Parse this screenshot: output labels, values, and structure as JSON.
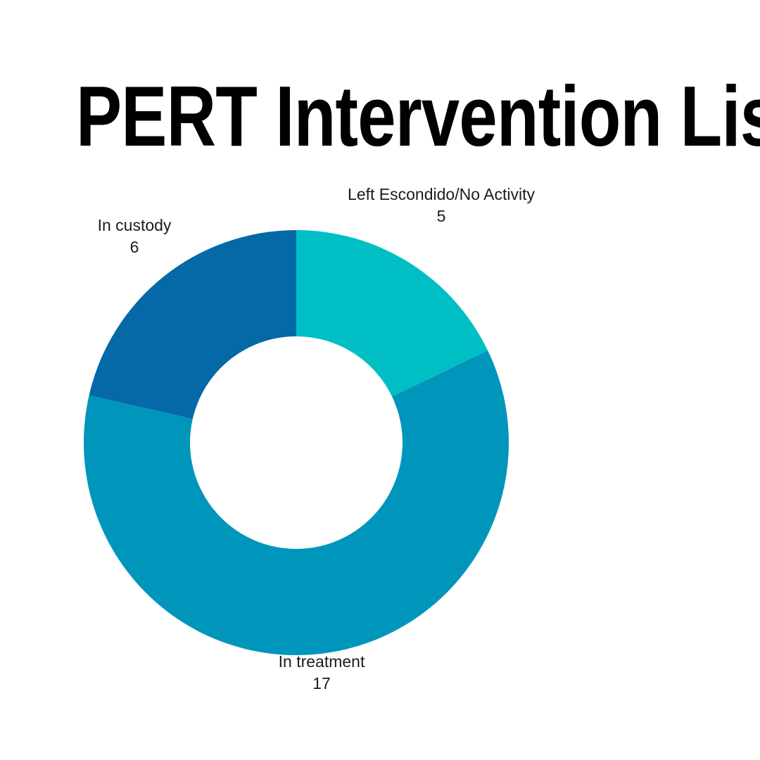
{
  "title": "PERT Intervention List",
  "chart_data": {
    "type": "pie",
    "subtype": "donut",
    "title": "PERT Intervention List",
    "total": 28,
    "start_angle_deg": 0,
    "direction": "clockwise",
    "inner_radius_ratio": 0.5,
    "background_color": "#ffffff",
    "label_text_color": "#1c1c1c",
    "title_color": "#000000",
    "legend_position": "none",
    "labels_outside": true,
    "slices": [
      {
        "label": "Left Escondido/No Activity",
        "value": 5,
        "color": "#00BFC4"
      },
      {
        "label": "In treatment",
        "value": 17,
        "color": "#0096BC"
      },
      {
        "label": "In custody",
        "value": 6,
        "color": "#0469A6"
      }
    ]
  }
}
